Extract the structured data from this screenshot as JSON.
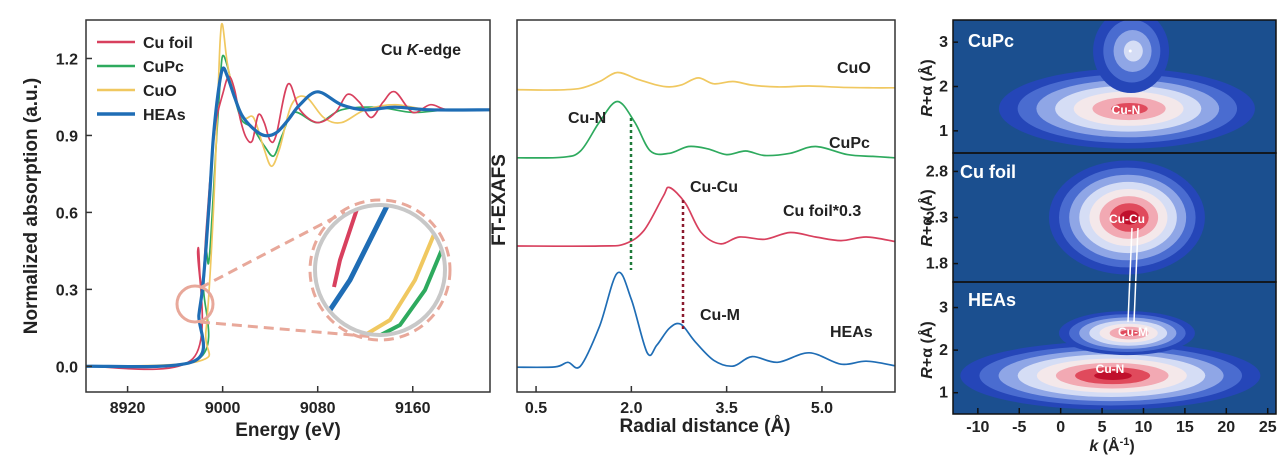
{
  "chart_data": [
    {
      "type": "line",
      "title": "",
      "annotation": "Cu K-edge",
      "xlabel": "Energy (eV)",
      "ylabel": "Normalized absorption (a.u.)",
      "xlim": [
        8885,
        9225
      ],
      "ylim": [
        -0.1,
        1.35
      ],
      "xticks": [
        "8920",
        "9000",
        "9080",
        "9160"
      ],
      "yticks": [
        "0.0",
        "0.3",
        "0.6",
        "0.9",
        "1.2"
      ],
      "legend_position": "top-left",
      "series": [
        {
          "name": "Cu foil",
          "color": "#d8405e",
          "x": [
            8885,
            8975,
            8979,
            8981,
            8983,
            8986,
            8989,
            8992,
            8995,
            9000,
            9005,
            9010,
            9015,
            9020,
            9025,
            9030,
            9035,
            9040,
            9045,
            9055,
            9065,
            9080,
            9095,
            9105,
            9115,
            9125,
            9135,
            9145,
            9160,
            9175,
            9190,
            9225
          ],
          "y": [
            0.0,
            0.03,
            0.45,
            0.35,
            0.3,
            0.52,
            0.71,
            0.86,
            0.97,
            1.06,
            1.13,
            1.08,
            0.96,
            0.89,
            0.88,
            0.98,
            0.95,
            0.88,
            0.9,
            1.1,
            1.0,
            0.95,
            0.99,
            1.06,
            1.03,
            0.97,
            1.03,
            1.07,
            0.99,
            1.02,
            1.0,
            1.0
          ]
        },
        {
          "name": "CuPc",
          "color": "#2eaa5e",
          "x": [
            8885,
            8980,
            8984,
            8986,
            8988,
            8990,
            8994,
            8998,
            9000,
            9004,
            9010,
            9016,
            9025,
            9035,
            9043,
            9050,
            9060,
            9080,
            9100,
            9130,
            9160,
            9190,
            9225
          ],
          "y": [
            0.0,
            0.03,
            0.31,
            0.45,
            0.4,
            0.5,
            0.82,
            1.12,
            1.21,
            1.17,
            1.05,
            0.96,
            0.93,
            0.86,
            0.82,
            0.9,
            0.99,
            0.95,
            1.0,
            1.01,
            0.99,
            1.0,
            1.0
          ]
        },
        {
          "name": "CuO",
          "color": "#f0c860",
          "x": [
            8885,
            8980,
            8986,
            8992,
            8996,
            8998,
            9000,
            9004,
            9010,
            9018,
            9026,
            9034,
            9041,
            9048,
            9058,
            9070,
            9085,
            9100,
            9120,
            9145,
            9175,
            9225
          ],
          "y": [
            0.0,
            0.02,
            0.14,
            0.58,
            1.05,
            1.28,
            1.33,
            1.18,
            1.06,
            0.97,
            0.97,
            0.86,
            0.78,
            0.85,
            1.02,
            1.05,
            0.97,
            0.95,
            1.0,
            1.02,
            1.0,
            1.0
          ]
        },
        {
          "name": "HEAs",
          "color": "#1f6db5",
          "x": [
            8885,
            8976,
            8980,
            8983,
            8986,
            8989,
            8992,
            8996,
            9000,
            9004,
            9010,
            9016,
            9025,
            9035,
            9045,
            9055,
            9065,
            9080,
            9100,
            9120,
            9145,
            9175,
            9225
          ],
          "y": [
            0.0,
            0.02,
            0.2,
            0.3,
            0.46,
            0.66,
            0.88,
            1.06,
            1.16,
            1.13,
            1.05,
            0.98,
            0.93,
            0.9,
            0.91,
            0.96,
            1.02,
            1.07,
            1.02,
            1.0,
            1.01,
            1.0,
            1.0
          ]
        }
      ]
    },
    {
      "type": "line",
      "title": "",
      "xlabel": "Radial distance (Å)",
      "ylabel": "FT-EXAFS",
      "xlim": [
        0.2,
        6.15
      ],
      "xticks": [
        "0.5",
        "2.0",
        "3.5",
        "5.0"
      ],
      "annotations": [
        "Cu-N",
        "Cu-Cu",
        "Cu-M"
      ],
      "series": [
        {
          "name": "CuO",
          "color": "#f0c860",
          "x": [
            0.2,
            0.8,
            1.2,
            1.5,
            1.78,
            2.1,
            2.4,
            2.6,
            2.8,
            3.05,
            3.3,
            3.6,
            3.9,
            4.3,
            4.8,
            5.3,
            5.8,
            6.15
          ],
          "y": [
            0.12,
            0.11,
            0.15,
            0.3,
            0.5,
            0.35,
            0.22,
            0.18,
            0.23,
            0.38,
            0.25,
            0.3,
            0.22,
            0.18,
            0.2,
            0.17,
            0.16,
            0.16
          ]
        },
        {
          "name": "CuPc",
          "color": "#2eaa5e",
          "x": [
            0.2,
            0.9,
            1.2,
            1.5,
            1.78,
            2.05,
            2.3,
            2.6,
            2.9,
            3.2,
            3.5,
            3.8,
            4.1,
            4.5,
            4.9,
            5.4,
            5.8,
            6.15
          ],
          "y": [
            0.05,
            0.06,
            0.2,
            0.85,
            1.3,
            0.85,
            0.2,
            0.15,
            0.3,
            0.25,
            0.12,
            0.2,
            0.1,
            0.15,
            0.3,
            0.12,
            0.08,
            0.05
          ]
        },
        {
          "name": "Cu foil*0.3",
          "color": "#d8405e",
          "x": [
            0.2,
            1.5,
            1.9,
            2.2,
            2.5,
            2.6,
            2.85,
            3.1,
            3.4,
            3.7,
            4.1,
            4.5,
            4.9,
            5.3,
            5.7,
            6.15
          ],
          "y": [
            0.0,
            0.0,
            0.05,
            0.35,
            1.1,
            1.3,
            0.95,
            0.3,
            0.05,
            0.2,
            0.15,
            0.3,
            0.2,
            0.12,
            0.2,
            0.1
          ]
        },
        {
          "name": "HEAs",
          "color": "#1f6db5",
          "x": [
            0.2,
            0.8,
            1.0,
            1.2,
            1.5,
            1.78,
            2.0,
            2.25,
            2.4,
            2.6,
            2.78,
            3.0,
            3.3,
            3.6,
            3.9,
            4.3,
            4.8,
            5.3,
            5.7,
            6.15
          ],
          "y": [
            0.02,
            0.03,
            0.15,
            0.05,
            1.1,
            2.5,
            1.8,
            0.4,
            0.6,
            1.05,
            1.15,
            0.7,
            0.2,
            0.05,
            0.3,
            0.15,
            0.4,
            0.1,
            0.18,
            0.06
          ]
        }
      ],
      "series_labels": [
        "CuO",
        "CuPc",
        "Cu foil*0.3",
        "HEAs"
      ]
    },
    {
      "type": "heatmap",
      "title": "",
      "xlabel": "k (Å⁻¹)",
      "ylabel": "R+α (Å)",
      "xlim": [
        -13,
        26
      ],
      "xticks": [
        "-10",
        "-5",
        "0",
        "5",
        "10",
        "15",
        "20",
        "25"
      ],
      "panels": [
        {
          "name": "CuPc",
          "ylim": [
            0.5,
            3.5
          ],
          "yticks": [
            "1",
            "2",
            "3"
          ],
          "features": [
            "Cu-N"
          ],
          "peaks": [
            {
              "label": "Cu-N",
              "k": 8,
              "r": 1.5,
              "intensity": 1.0
            },
            {
              "label": "",
              "k": 8.5,
              "r": 2.8,
              "intensity": 0.45
            }
          ]
        },
        {
          "name": "Cu foil",
          "ylim": [
            1.6,
            3.0
          ],
          "yticks": [
            "1.8",
            "2.3",
            "2.8"
          ],
          "features": [
            "Cu-Cu"
          ],
          "peaks": [
            {
              "label": "Cu-Cu",
              "k": 8,
              "r": 2.3,
              "intensity": 1.0
            }
          ]
        },
        {
          "name": "HEAs",
          "ylim": [
            0.5,
            3.6
          ],
          "yticks": [
            "1",
            "2",
            "3"
          ],
          "features": [
            "Cu-M",
            "Cu-N"
          ],
          "peaks": [
            {
              "label": "Cu-M",
              "k": 8,
              "r": 2.4,
              "intensity": 0.85
            },
            {
              "label": "Cu-N",
              "k": 6,
              "r": 1.4,
              "intensity": 1.0
            }
          ]
        }
      ]
    }
  ]
}
